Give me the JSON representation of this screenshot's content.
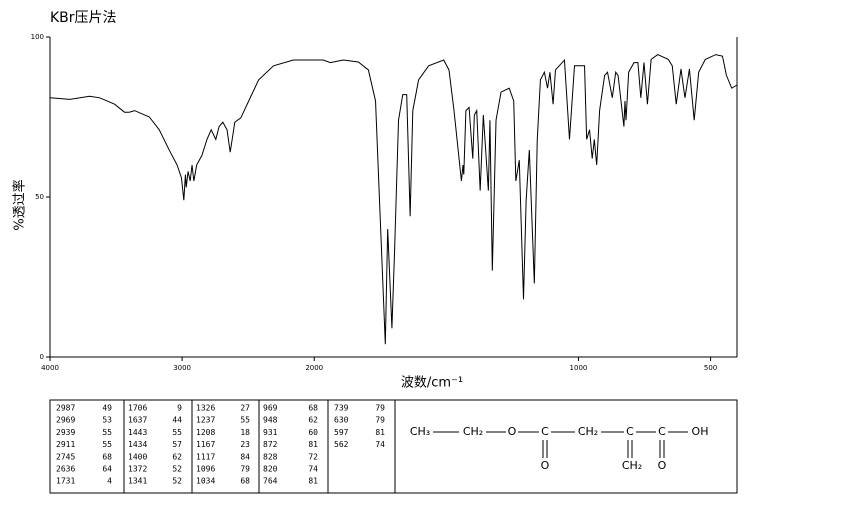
{
  "chart_data": {
    "type": "line",
    "title": "KBr压片法",
    "xlabel": "波数/cm⁻¹",
    "ylabel": "%透过率",
    "xlim": [
      4000,
      400
    ],
    "x_scale_break": 2000,
    "x_scale_factor_above_break": 0.5,
    "xticks": [
      4000,
      3000,
      2000,
      1000,
      500
    ],
    "ylim": [
      0,
      100
    ],
    "yticks": [
      0,
      50,
      100
    ],
    "series": [
      {
        "color": "#000000",
        "x": [
          4000,
          3850,
          3700,
          3624,
          3511,
          3436,
          3400,
          3360,
          3248,
          3173,
          3098,
          3038,
          3005,
          2987,
          2975,
          2969,
          2955,
          2939,
          2925,
          2911,
          2890,
          2850,
          2812,
          2780,
          2745,
          2720,
          2692,
          2660,
          2636,
          2601,
          2556,
          2496,
          2421,
          2308,
          2158,
          2050,
          1966,
          1939,
          1890,
          1833,
          1795,
          1768,
          1753,
          1731,
          1722,
          1706,
          1696,
          1681,
          1665,
          1650,
          1637,
          1627,
          1605,
          1567,
          1510,
          1490,
          1471,
          1443,
          1437,
          1434,
          1426,
          1414,
          1400,
          1394,
          1385,
          1372,
          1360,
          1341,
          1335,
          1326,
          1312,
          1293,
          1262,
          1245,
          1237,
          1224,
          1208,
          1198,
          1186,
          1167,
          1156,
          1144,
          1129,
          1117,
          1108,
          1096,
          1087,
          1053,
          1034,
          1015,
          977,
          969,
          958,
          948,
          940,
          931,
          920,
          901,
          890,
          872,
          859,
          850,
          828,
          824,
          820,
          810,
          790,
          775,
          764,
          752,
          739,
          725,
          700,
          660,
          645,
          630,
          612,
          597,
          580,
          562,
          545,
          520,
          480,
          455,
          440,
          420,
          400
        ],
        "values": [
          81,
          80.5,
          81.5,
          81,
          79,
          76.5,
          76.5,
          77,
          75,
          71,
          64.7,
          60,
          56,
          49,
          57,
          53,
          58,
          55,
          60,
          55,
          60,
          63,
          68,
          71,
          68,
          72,
          73.4,
          71,
          64,
          73.4,
          74.7,
          80,
          86.6,
          91,
          92.8,
          92.8,
          92.8,
          92,
          92.8,
          92.2,
          89.7,
          80,
          49,
          4,
          40,
          9,
          33,
          74,
          82,
          82,
          44,
          77,
          86.6,
          91,
          92.8,
          89.7,
          77,
          55,
          60,
          57,
          77,
          78,
          62,
          75.6,
          77,
          52,
          75.6,
          52,
          74,
          27,
          74,
          82.8,
          84,
          80,
          55,
          61.5,
          18,
          49,
          64.7,
          23,
          67.8,
          86.6,
          89,
          84,
          89,
          79,
          89.7,
          92.8,
          68,
          91,
          91,
          68,
          71,
          62,
          68,
          60,
          77,
          88,
          89,
          81,
          89,
          88,
          72,
          80,
          74,
          89,
          92,
          92,
          81,
          92,
          79,
          93,
          94.5,
          93,
          91,
          79,
          90,
          81,
          90,
          74,
          89,
          93,
          94.5,
          94,
          88,
          84,
          85
        ]
      }
    ]
  },
  "peak_table": [
    [
      2987,
      49
    ],
    [
      2969,
      53
    ],
    [
      2939,
      55
    ],
    [
      2911,
      55
    ],
    [
      2745,
      68
    ],
    [
      2636,
      64
    ],
    [
      1731,
      4
    ],
    [
      1706,
      9
    ],
    [
      1637,
      44
    ],
    [
      1443,
      55
    ],
    [
      1434,
      57
    ],
    [
      1400,
      62
    ],
    [
      1372,
      52
    ],
    [
      1341,
      52
    ],
    [
      1326,
      27
    ],
    [
      1237,
      55
    ],
    [
      1208,
      18
    ],
    [
      1167,
      23
    ],
    [
      1117,
      84
    ],
    [
      1096,
      79
    ],
    [
      1034,
      68
    ],
    [
      969,
      68
    ],
    [
      948,
      62
    ],
    [
      931,
      60
    ],
    [
      872,
      81
    ],
    [
      828,
      72
    ],
    [
      820,
      74
    ],
    [
      764,
      81
    ],
    [
      739,
      79
    ],
    [
      630,
      79
    ],
    [
      597,
      81
    ],
    [
      562,
      74
    ]
  ],
  "structure": {
    "chain": [
      "CH₃",
      "CH₂",
      "O",
      "C",
      "CH₂",
      "C",
      "C",
      "OH"
    ],
    "below": [
      "O",
      "CH₂",
      "O"
    ]
  }
}
